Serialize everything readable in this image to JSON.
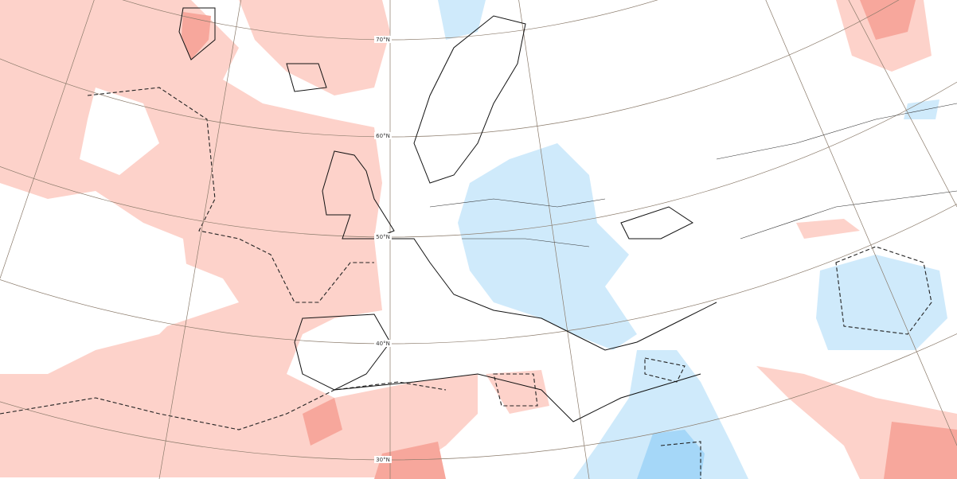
{
  "map": {
    "lat_labels": [
      "70°N",
      "60°N",
      "50°N",
      "40°N",
      "30°N"
    ]
  }
}
